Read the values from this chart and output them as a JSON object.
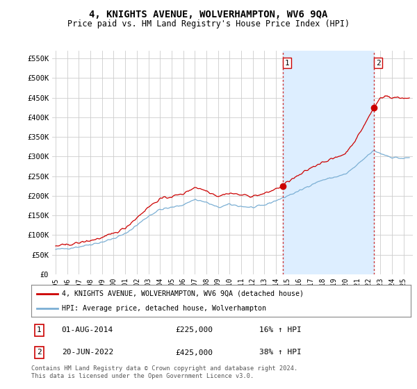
{
  "title": "4, KNIGHTS AVENUE, WOLVERHAMPTON, WV6 9QA",
  "subtitle": "Price paid vs. HM Land Registry's House Price Index (HPI)",
  "title_fontsize": 10,
  "subtitle_fontsize": 8.5,
  "ylabel_ticks": [
    "£0",
    "£50K",
    "£100K",
    "£150K",
    "£200K",
    "£250K",
    "£300K",
    "£350K",
    "£400K",
    "£450K",
    "£500K",
    "£550K"
  ],
  "ytick_values": [
    0,
    50000,
    100000,
    150000,
    200000,
    250000,
    300000,
    350000,
    400000,
    450000,
    500000,
    550000
  ],
  "ylim": [
    0,
    570000
  ],
  "xlim_start": 1994.7,
  "xlim_end": 2025.8,
  "x_years": [
    1995,
    1996,
    1997,
    1998,
    1999,
    2000,
    2001,
    2002,
    2003,
    2004,
    2005,
    2006,
    2007,
    2008,
    2009,
    2010,
    2011,
    2012,
    2013,
    2014,
    2015,
    2016,
    2017,
    2018,
    2019,
    2020,
    2021,
    2022,
    2023,
    2024,
    2025
  ],
  "transaction1_x": 2014.583,
  "transaction1_y": 225000,
  "transaction2_x": 2022.46,
  "transaction2_y": 425000,
  "red_line_color": "#cc0000",
  "blue_line_color": "#7bafd4",
  "shade_color": "#ddeeff",
  "marker_color": "#cc0000",
  "vline_color": "#cc3333",
  "grid_color": "#cccccc",
  "bg_color": "#ffffff",
  "legend_line1": "4, KNIGHTS AVENUE, WOLVERHAMPTON, WV6 9QA (detached house)",
  "legend_line2": "HPI: Average price, detached house, Wolverhampton",
  "transaction1_date": "01-AUG-2014",
  "transaction1_price": "£225,000",
  "transaction1_hpi": "16% ↑ HPI",
  "transaction2_date": "20-JUN-2022",
  "transaction2_price": "£425,000",
  "transaction2_hpi": "38% ↑ HPI",
  "footer": "Contains HM Land Registry data © Crown copyright and database right 2024.\nThis data is licensed under the Open Government Licence v3.0."
}
